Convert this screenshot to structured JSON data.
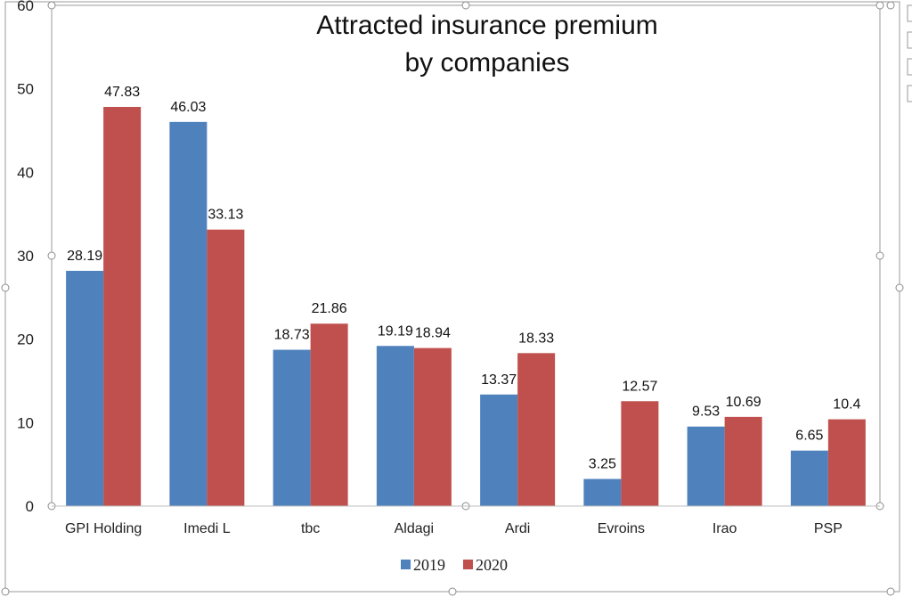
{
  "chart_data": {
    "type": "bar",
    "title": "Attracted insurance premium",
    "subtitle": "by companies",
    "xlabel": "",
    "ylabel": "",
    "ylim": [
      0,
      60
    ],
    "yticks": [
      0,
      10,
      20,
      30,
      40,
      50,
      60
    ],
    "grid": false,
    "legend_position": "bottom",
    "categories": [
      "GPI Holding",
      "Imedi L",
      "tbc",
      "Aldagi",
      "Ardi",
      "Evroins",
      "Irao",
      "PSP"
    ],
    "series": [
      {
        "name": "2019",
        "color": "#4f81bd",
        "values": [
          28.19,
          46.03,
          18.73,
          19.19,
          13.37,
          3.25,
          9.53,
          6.65
        ]
      },
      {
        "name": "2020",
        "color": "#c0504d",
        "values": [
          47.83,
          33.13,
          21.86,
          18.94,
          18.33,
          12.57,
          10.69,
          10.4
        ]
      }
    ]
  }
}
